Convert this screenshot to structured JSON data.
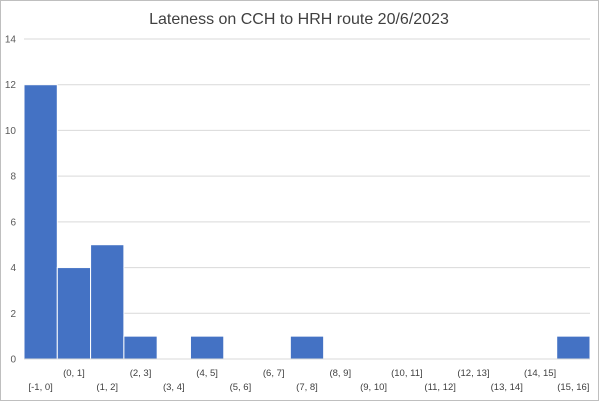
{
  "chart_data": {
    "type": "bar",
    "title": "Lateness on CCH to HRH route 20/6/2023",
    "xlabel": "",
    "ylabel": "",
    "categories": [
      "[-1, 0]",
      "(0, 1]",
      "(1, 2]",
      "(2, 3]",
      "(3, 4]",
      "(4, 5]",
      "(5, 6]",
      "(6, 7]",
      "(7, 8]",
      "(8, 9]",
      "(9, 10]",
      "(10, 11]",
      "(11, 12]",
      "(12, 13]",
      "(13, 14]",
      "(14, 15]",
      "(15, 16]"
    ],
    "values": [
      12,
      4,
      5,
      1,
      0,
      1,
      0,
      0,
      1,
      0,
      0,
      0,
      0,
      0,
      0,
      0,
      1
    ],
    "ylim": [
      0,
      14
    ],
    "yticks": [
      0,
      2,
      4,
      6,
      8,
      10,
      12,
      14
    ],
    "grid": true,
    "bar_color": "#4472c4",
    "grid_color": "#d9d9d9"
  }
}
